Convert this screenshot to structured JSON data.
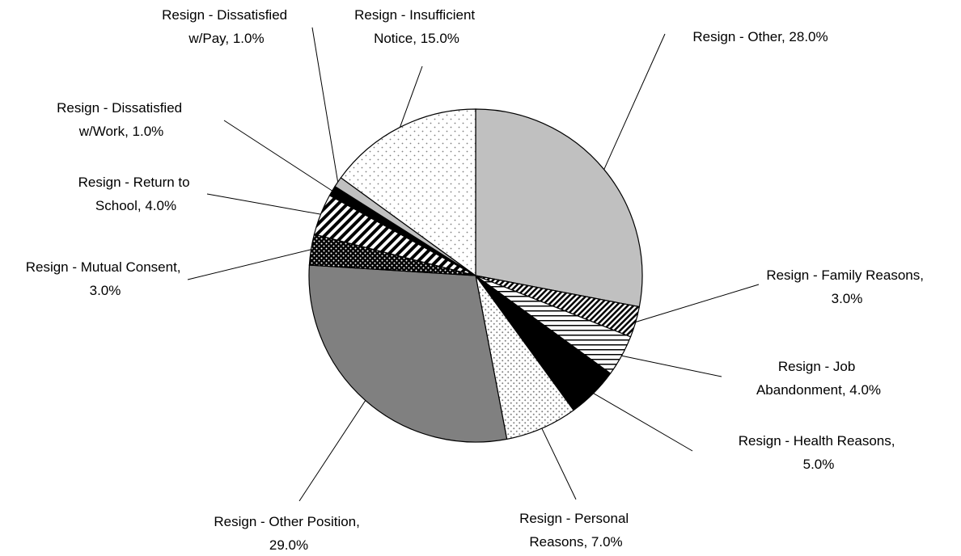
{
  "chart_data": {
    "type": "pie",
    "labels": [
      "Resign - Other, 28.0%",
      "Resign - Family Reasons, 3.0%",
      "Resign - Job Abandonment, 4.0%",
      "Resign - Health Reasons, 5.0%",
      "Resign - Personal Reasons, 7.0%",
      "Resign - Other Position, 29.0%",
      "Resign - Mutual Consent, 3.0%",
      "Resign - Return to School, 4.0%",
      "Resign - Dissatisfied w/Work, 1.0%",
      "Resign - Dissatisfied w/Pay, 1.0%",
      "Resign - Insufficient Notice, 15.0%"
    ],
    "values": [
      28,
      3,
      4,
      5,
      7,
      29,
      3,
      4,
      1,
      1,
      15
    ],
    "colors": [
      "#c0c0c0",
      "#000000",
      "#000000",
      "#000000",
      "#808080",
      "#808080",
      "#000000",
      "#000000",
      "#000000",
      "#c0c0c0",
      "#808080"
    ],
    "patterns": [
      "solid",
      "diag",
      "hlines",
      "solid",
      "dots",
      "solid",
      "dots-white",
      "stripes",
      "solid",
      "solid",
      "sparse-dots"
    ]
  }
}
